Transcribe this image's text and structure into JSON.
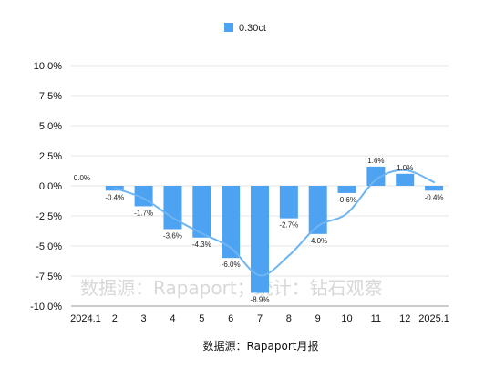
{
  "chart_data": {
    "type": "bar",
    "categories": [
      "2024.1",
      "2",
      "3",
      "4",
      "5",
      "6",
      "7",
      "8",
      "9",
      "10",
      "11",
      "12",
      "2025.1"
    ],
    "series": [
      {
        "name": "0.30ct",
        "values": [
          0.0,
          -0.4,
          -1.7,
          -3.6,
          -4.3,
          -6.0,
          -8.9,
          -2.7,
          -4.0,
          -0.6,
          1.6,
          1.0,
          -0.4
        ],
        "data_labels": [
          "0.0%",
          "-0.4%",
          "-1.7%",
          "-3.6%",
          "-4.3%",
          "-6.0%",
          "-8.9%",
          "-2.7%",
          "-4.0%",
          "-0.6%",
          "1.6%",
          "1.0%",
          "-0.4%"
        ],
        "color": "#4ea2f2"
      }
    ],
    "trendline": {
      "type": "moving-average",
      "color": "#6fb5f2"
    },
    "yticks": [
      10.0,
      7.5,
      5.0,
      2.5,
      0.0,
      -2.5,
      -5.0,
      -7.5,
      -10.0
    ],
    "ytick_labels": [
      "10.0%",
      "7.5%",
      "5.0%",
      "2.5%",
      "0.0%",
      "-2.5%",
      "-5.0%",
      "-7.5%",
      "-10.0%"
    ],
    "ylim": [
      -10,
      10
    ],
    "grid": true,
    "legend_position": "top-center",
    "source_note": "数据源：Rapaport月报",
    "watermark": "数据源：Rapaport；统计：钻石观察"
  },
  "colors": {
    "bar": "#4ea2f2",
    "line": "#6fb5f2",
    "grid": "#e4e4e4",
    "axis": "#999999"
  }
}
